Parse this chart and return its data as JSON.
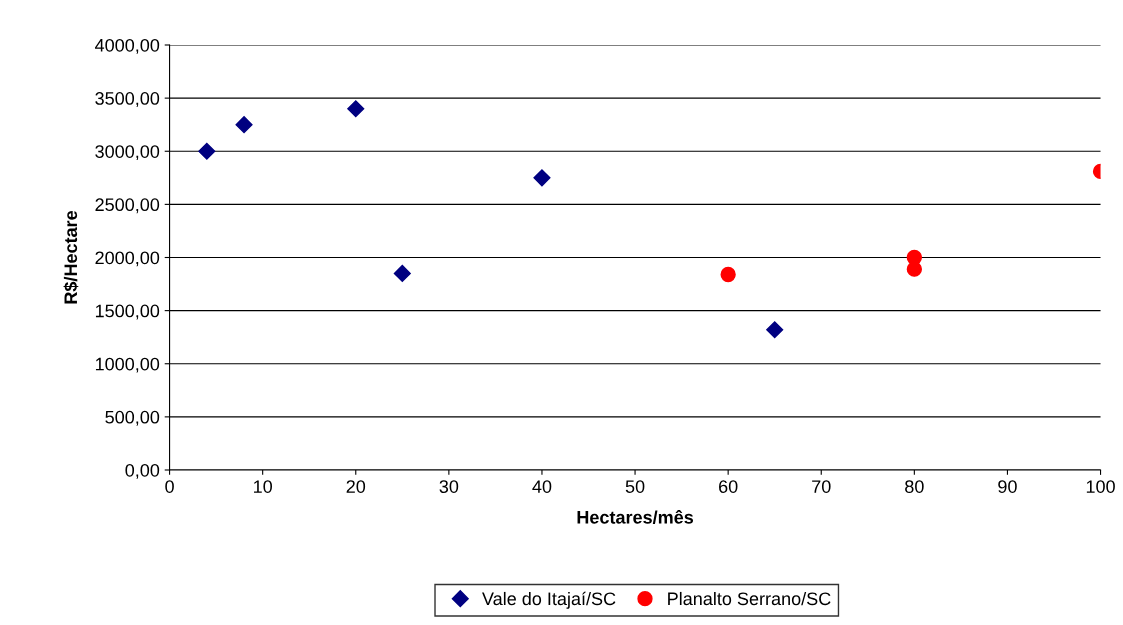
{
  "chart_data": {
    "type": "scatter",
    "xlabel": "Hectares/mês",
    "ylabel": "R$/Hectare",
    "series": [
      {
        "name": "Vale do Itajaí/SC",
        "color": "#000080",
        "marker": "diamond",
        "x": [
          4,
          8,
          20,
          25,
          40,
          65
        ],
        "values": [
          3000,
          3250,
          3400,
          1850,
          2750,
          1320
        ]
      },
      {
        "name": "Planalto Serrano/SC",
        "color": "#ff0000",
        "marker": "circle",
        "x": [
          60,
          80,
          80,
          100
        ],
        "values": [
          1840,
          2000,
          1890,
          2810
        ]
      }
    ],
    "xlim": [
      0,
      100
    ],
    "xticks": [
      0,
      10,
      20,
      30,
      40,
      50,
      60,
      70,
      80,
      90,
      100
    ],
    "ylim": [
      0,
      4000
    ],
    "yticks": [
      {
        "value": 0,
        "label": "0,00"
      },
      {
        "value": 500,
        "label": "500,00"
      },
      {
        "value": 1000,
        "label": "1000,00"
      },
      {
        "value": 1500,
        "label": "1500,00"
      },
      {
        "value": 2000,
        "label": "2000,00"
      },
      {
        "value": 2500,
        "label": "2500,00"
      },
      {
        "value": 3000,
        "label": "3000,00"
      },
      {
        "value": 3500,
        "label": "3500,00"
      },
      {
        "value": 4000,
        "label": "4000,00"
      }
    ],
    "grid": "y",
    "legend": "bottom"
  }
}
